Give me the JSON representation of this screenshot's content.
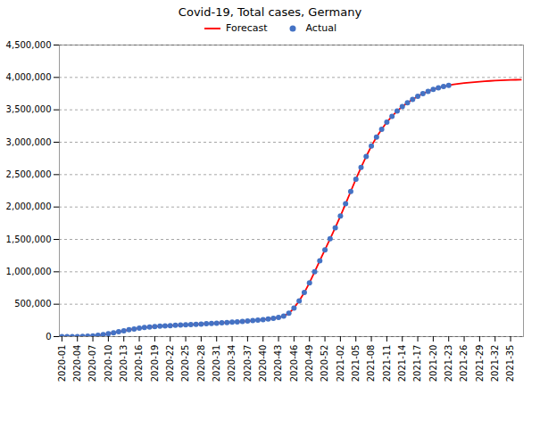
{
  "chart_data": {
    "type": "line",
    "title": "Covid-19, Total cases, Germany",
    "categories": [
      "2020-01",
      null,
      null,
      "2020-04",
      null,
      null,
      "2020-07",
      null,
      null,
      "2020-10",
      null,
      null,
      "2020-13",
      null,
      null,
      "2020-16",
      null,
      null,
      "2020-19",
      null,
      null,
      "2020-22",
      null,
      null,
      "2020-25",
      null,
      null,
      "2020-28",
      null,
      null,
      "2020-31",
      null,
      null,
      "2020-34",
      null,
      null,
      "2020-37",
      null,
      null,
      "2020-40",
      null,
      null,
      "2020-43",
      null,
      null,
      "2020-46",
      null,
      null,
      "2020-49",
      null,
      null,
      "2020-52",
      null,
      null,
      "2021-02",
      null,
      null,
      "2021-05",
      null,
      null,
      "2021-08",
      null,
      null,
      "2021-11",
      null,
      null,
      "2021-14",
      null,
      null,
      "2021-17",
      null,
      null,
      "2021-20",
      null,
      null,
      "2021-23",
      null,
      null,
      "2021-26",
      null,
      null,
      "2021-29",
      null,
      null,
      "2021-32",
      null,
      null,
      "2021-35",
      null,
      null
    ],
    "series": [
      {
        "name": "Forecast",
        "type": "line",
        "color": "#FF0000",
        "values": [
          100,
          200,
          400,
          1000,
          2500,
          6000,
          12000,
          20000,
          30000,
          44000,
          60000,
          75000,
          90000,
          105000,
          118000,
          130000,
          140000,
          148000,
          155000,
          160000,
          165000,
          170000,
          174000,
          178000,
          182000,
          186000,
          190000,
          194000,
          198000,
          203000,
          208000,
          213000,
          218000,
          223000,
          228000,
          234000,
          240000,
          247000,
          255000,
          263000,
          272000,
          282000,
          295000,
          315000,
          360000,
          440000,
          550000,
          680000,
          830000,
          1000000,
          1170000,
          1340000,
          1510000,
          1680000,
          1860000,
          2050000,
          2240000,
          2430000,
          2610000,
          2780000,
          2940000,
          3080000,
          3200000,
          3310000,
          3400000,
          3480000,
          3550000,
          3610000,
          3660000,
          3710000,
          3750000,
          3785000,
          3815000,
          3840000,
          3860000,
          3878000,
          3892000,
          3903000,
          3912000,
          3920000,
          3928000,
          3935000,
          3941000,
          3946000,
          3951000,
          3955000,
          3958000,
          3961000,
          3963000,
          3965000
        ]
      },
      {
        "name": "Actual",
        "type": "scatter",
        "marker": "circle",
        "color": "#4472C4",
        "values": [
          100,
          200,
          400,
          1000,
          2500,
          6000,
          12000,
          20000,
          30000,
          44000,
          60000,
          75000,
          90000,
          105000,
          118000,
          130000,
          140000,
          148000,
          155000,
          160000,
          165000,
          170000,
          174000,
          178000,
          182000,
          186000,
          190000,
          194000,
          198000,
          203000,
          208000,
          213000,
          218000,
          223000,
          228000,
          234000,
          240000,
          247000,
          255000,
          263000,
          272000,
          282000,
          295000,
          315000,
          360000,
          440000,
          550000,
          680000,
          830000,
          1000000,
          1170000,
          1340000,
          1510000,
          1680000,
          1860000,
          2050000,
          2240000,
          2430000,
          2610000,
          2780000,
          2940000,
          3080000,
          3200000,
          3310000,
          3400000,
          3480000,
          3550000,
          3610000,
          3660000,
          3710000,
          3750000,
          3785000,
          3815000,
          3840000,
          3860000,
          3878000,
          null,
          null,
          null,
          null,
          null,
          null,
          null,
          null,
          null,
          null,
          null,
          null,
          null,
          null
        ]
      }
    ],
    "ylim": [
      0,
      4500000
    ],
    "yticks": [
      0,
      {
        "value": 500000,
        "label": "500,000"
      },
      {
        "value": 1000000,
        "label": "1,000,000"
      },
      {
        "value": 1500000,
        "label": "1,500,000"
      },
      {
        "value": 2000000,
        "label": "2,000,000"
      },
      {
        "value": 2500000,
        "label": "2,500,000"
      },
      {
        "value": 3000000,
        "label": "3,000,000"
      },
      {
        "value": 3500000,
        "label": "3,500,000"
      },
      {
        "value": 4000000,
        "label": "4,000,000"
      },
      {
        "value": 4500000,
        "label": "4,500,000"
      }
    ],
    "grid": true,
    "legend": "upper left"
  }
}
